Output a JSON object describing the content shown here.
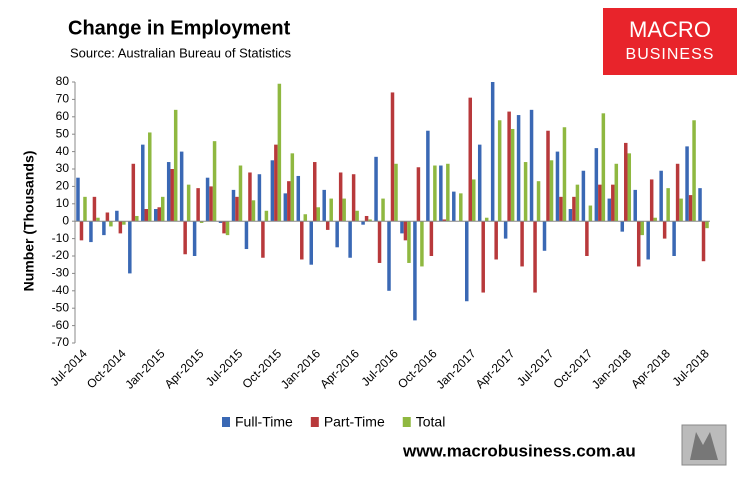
{
  "chart_data": {
    "type": "bar",
    "title": "Change in Employment",
    "subtitle": "Source: Australian Bureau of Statistics",
    "logo_lines": [
      "MACRO",
      "BUSINESS"
    ],
    "footer": "www.macrobusiness.com.au",
    "y_label": "Number (Thousands)",
    "categories": [
      "Jul-2014",
      null,
      null,
      "Oct-2014",
      null,
      null,
      "Jan-2015",
      null,
      null,
      "Apr-2015",
      null,
      null,
      "Jul-2015",
      null,
      null,
      "Oct-2015",
      null,
      null,
      "Jan-2016",
      null,
      null,
      "Apr-2016",
      null,
      null,
      "Jul-2016",
      null,
      null,
      "Oct-2016",
      null,
      null,
      "Jan-2017",
      null,
      null,
      "Apr-2017",
      null,
      null,
      "Jul-2017",
      null,
      null,
      "Oct-2017",
      null,
      null,
      "Jan-2018",
      null,
      null,
      "Apr-2018",
      null,
      null,
      "Jul-2018"
    ],
    "series": [
      {
        "name": "Full-Time",
        "color": "#3a68b4",
        "values": [
          25,
          -12,
          -8,
          6,
          -30,
          44,
          7,
          34,
          40,
          -20,
          25,
          -1,
          18,
          -16,
          27,
          35,
          16,
          26,
          -25,
          18,
          -15,
          -21,
          -2,
          37,
          -40,
          -7,
          -57,
          52,
          32,
          17,
          -46,
          44,
          80,
          -10,
          61,
          64,
          -17,
          40,
          7,
          29,
          42,
          13,
          -6,
          18,
          -22,
          29,
          -20,
          43,
          19
        ]
      },
      {
        "name": "Part-Time",
        "color": "#b8393b",
        "values": [
          -11,
          14,
          5,
          -7,
          33,
          7,
          8,
          30,
          -19,
          19,
          20,
          -7,
          14,
          28,
          -21,
          44,
          23,
          -22,
          34,
          -5,
          28,
          27,
          3,
          -24,
          74,
          -11,
          31,
          -20,
          1,
          0,
          71,
          -41,
          -22,
          63,
          -26,
          -41,
          52,
          14,
          14,
          -20,
          21,
          21,
          45,
          -26,
          24,
          -10,
          33,
          15,
          -23
        ]
      },
      {
        "name": "Total",
        "color": "#8fb840",
        "values": [
          14,
          2,
          -3,
          -2,
          3,
          51,
          14,
          64,
          21,
          -1,
          46,
          -8,
          32,
          12,
          6,
          79,
          39,
          4,
          8,
          13,
          13,
          6,
          1,
          13,
          33,
          -24,
          -26,
          32,
          33,
          16,
          24,
          2,
          58,
          53,
          34,
          23,
          35,
          54,
          21,
          9,
          62,
          33,
          39,
          -8,
          2,
          19,
          13,
          58,
          -4
        ]
      }
    ],
    "ylim": [
      -70,
      80
    ],
    "yticks": [
      -70,
      -60,
      -50,
      -40,
      -30,
      -20,
      -10,
      0,
      10,
      20,
      30,
      40,
      50,
      60,
      70,
      80
    ],
    "grid": false
  }
}
